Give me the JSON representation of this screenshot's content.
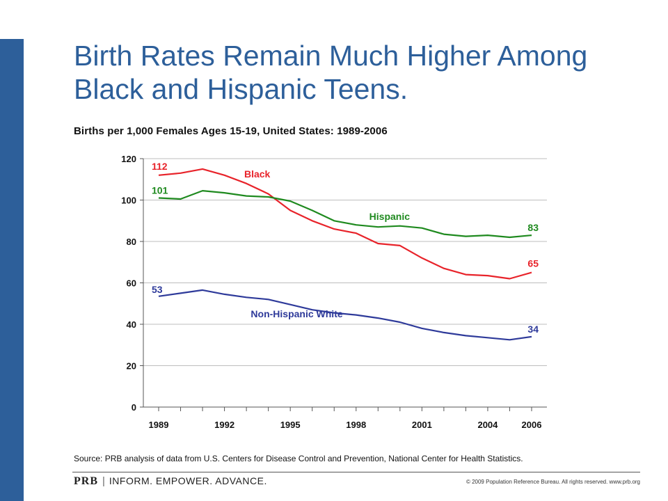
{
  "page": {
    "title": "Birth Rates Remain Much Higher Among Black and Hispanic Teens.",
    "subtitle": "Births per 1,000 Females Ages 15-19, United States: 1989-2006",
    "source": "Source: PRB analysis of data from U.S. Centers for Disease Control and Prevention, National Center for Health Statistics.",
    "footer": {
      "logo": "PRB",
      "tagline": "INFORM. EMPOWER. ADVANCE.",
      "copyright": "© 2009 Population Reference Bureau. All rights reserved. www.prb.org"
    },
    "colors": {
      "accent": "#2d5f9a"
    }
  },
  "chart_data": {
    "type": "line",
    "title": "Births per 1,000 Females Ages 15-19, United States: 1989-2006",
    "xlabel": "",
    "ylabel": "",
    "x": [
      1989,
      1990,
      1991,
      1992,
      1993,
      1994,
      1995,
      1996,
      1997,
      1998,
      1999,
      2000,
      2001,
      2002,
      2003,
      2004,
      2005,
      2006
    ],
    "xticks": [
      1989,
      1992,
      1995,
      1998,
      2001,
      2004,
      2006
    ],
    "xlim": [
      1989,
      2006
    ],
    "ylim": [
      0,
      120
    ],
    "yticks": [
      0,
      20,
      40,
      60,
      80,
      100,
      120
    ],
    "grid": true,
    "series": [
      {
        "name": "Black",
        "color": "#e8232a",
        "values": [
          112,
          113,
          115,
          112,
          108,
          103,
          95,
          90,
          86,
          84,
          79,
          78,
          72,
          67,
          64,
          63.5,
          62,
          65
        ],
        "start_label": "112",
        "end_label": "65"
      },
      {
        "name": "Hispanic",
        "color": "#1f8a1f",
        "values": [
          101,
          100.5,
          104.5,
          103.5,
          102,
          101.5,
          99.5,
          95,
          90,
          88,
          87,
          87.5,
          86.5,
          83.5,
          82.5,
          83,
          82,
          83
        ],
        "start_label": "101",
        "end_label": "83"
      },
      {
        "name": "Non-Hispanic White",
        "color": "#2e3a9a",
        "values": [
          53.5,
          55,
          56.5,
          54.5,
          53,
          52,
          49.5,
          47,
          45.5,
          44.5,
          43,
          41,
          38,
          36,
          34.5,
          33.5,
          32.5,
          34
        ],
        "start_label": "53",
        "end_label": "34"
      }
    ]
  }
}
